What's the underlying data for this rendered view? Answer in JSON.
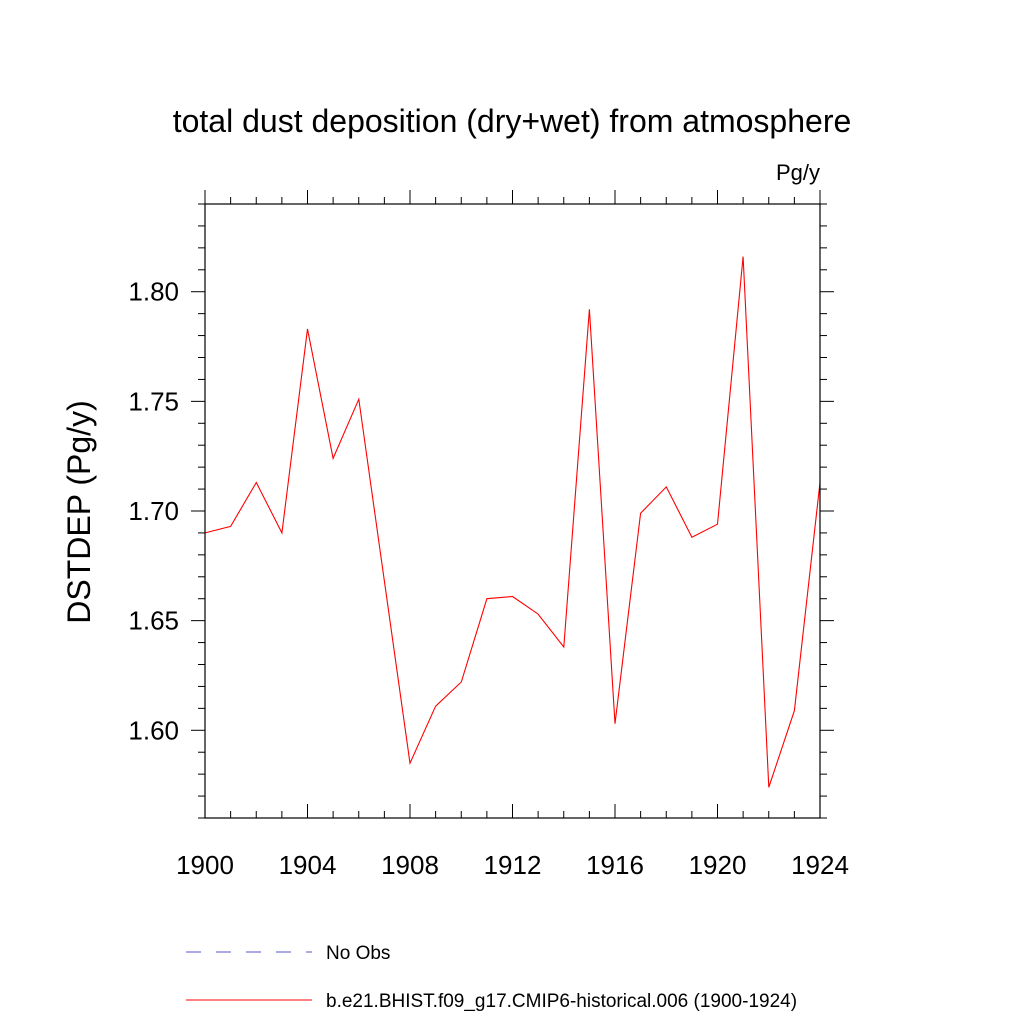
{
  "chart_data": {
    "type": "line",
    "title": "total dust deposition (dry+wet) from atmosphere",
    "units": "Pg/y",
    "ylabel": "DSTDEP  (Pg/y)",
    "xlabel": "",
    "xlim": [
      1900,
      1924
    ],
    "ylim": [
      1.56,
      1.84
    ],
    "x_ticks": [
      1900,
      1904,
      1908,
      1912,
      1916,
      1920,
      1924
    ],
    "x_tick_labels": [
      "1900",
      "1904",
      "1908",
      "1912",
      "1916",
      "1920",
      "1924"
    ],
    "y_ticks": [
      1.6,
      1.65,
      1.7,
      1.75,
      1.8
    ],
    "y_tick_labels": [
      "1.60",
      "1.65",
      "1.70",
      "1.75",
      "1.80"
    ],
    "grid": false,
    "legend_position": "bottom",
    "series": [
      {
        "name": "b.e21.BHIST.f09_g17.CMIP6-historical.006 (1900-1924)",
        "color": "#ff0000",
        "style": "solid",
        "x": [
          1900,
          1901,
          1902,
          1903,
          1904,
          1905,
          1906,
          1907,
          1908,
          1909,
          1910,
          1911,
          1912,
          1913,
          1914,
          1915,
          1916,
          1917,
          1918,
          1919,
          1920,
          1921,
          1922,
          1923,
          1924
        ],
        "values": [
          1.69,
          1.693,
          1.713,
          1.69,
          1.783,
          1.724,
          1.751,
          1.668,
          1.585,
          1.611,
          1.622,
          1.66,
          1.661,
          1.653,
          1.638,
          1.792,
          1.603,
          1.699,
          1.711,
          1.688,
          1.694,
          1.816,
          1.574,
          1.609,
          1.713
        ]
      }
    ],
    "legend": [
      {
        "label": "No Obs",
        "color": "#5555cc",
        "style": "dashed"
      },
      {
        "label": "b.e21.BHIST.f09_g17.CMIP6-historical.006 (1900-1924)",
        "color": "#ff0000",
        "style": "solid"
      }
    ]
  }
}
